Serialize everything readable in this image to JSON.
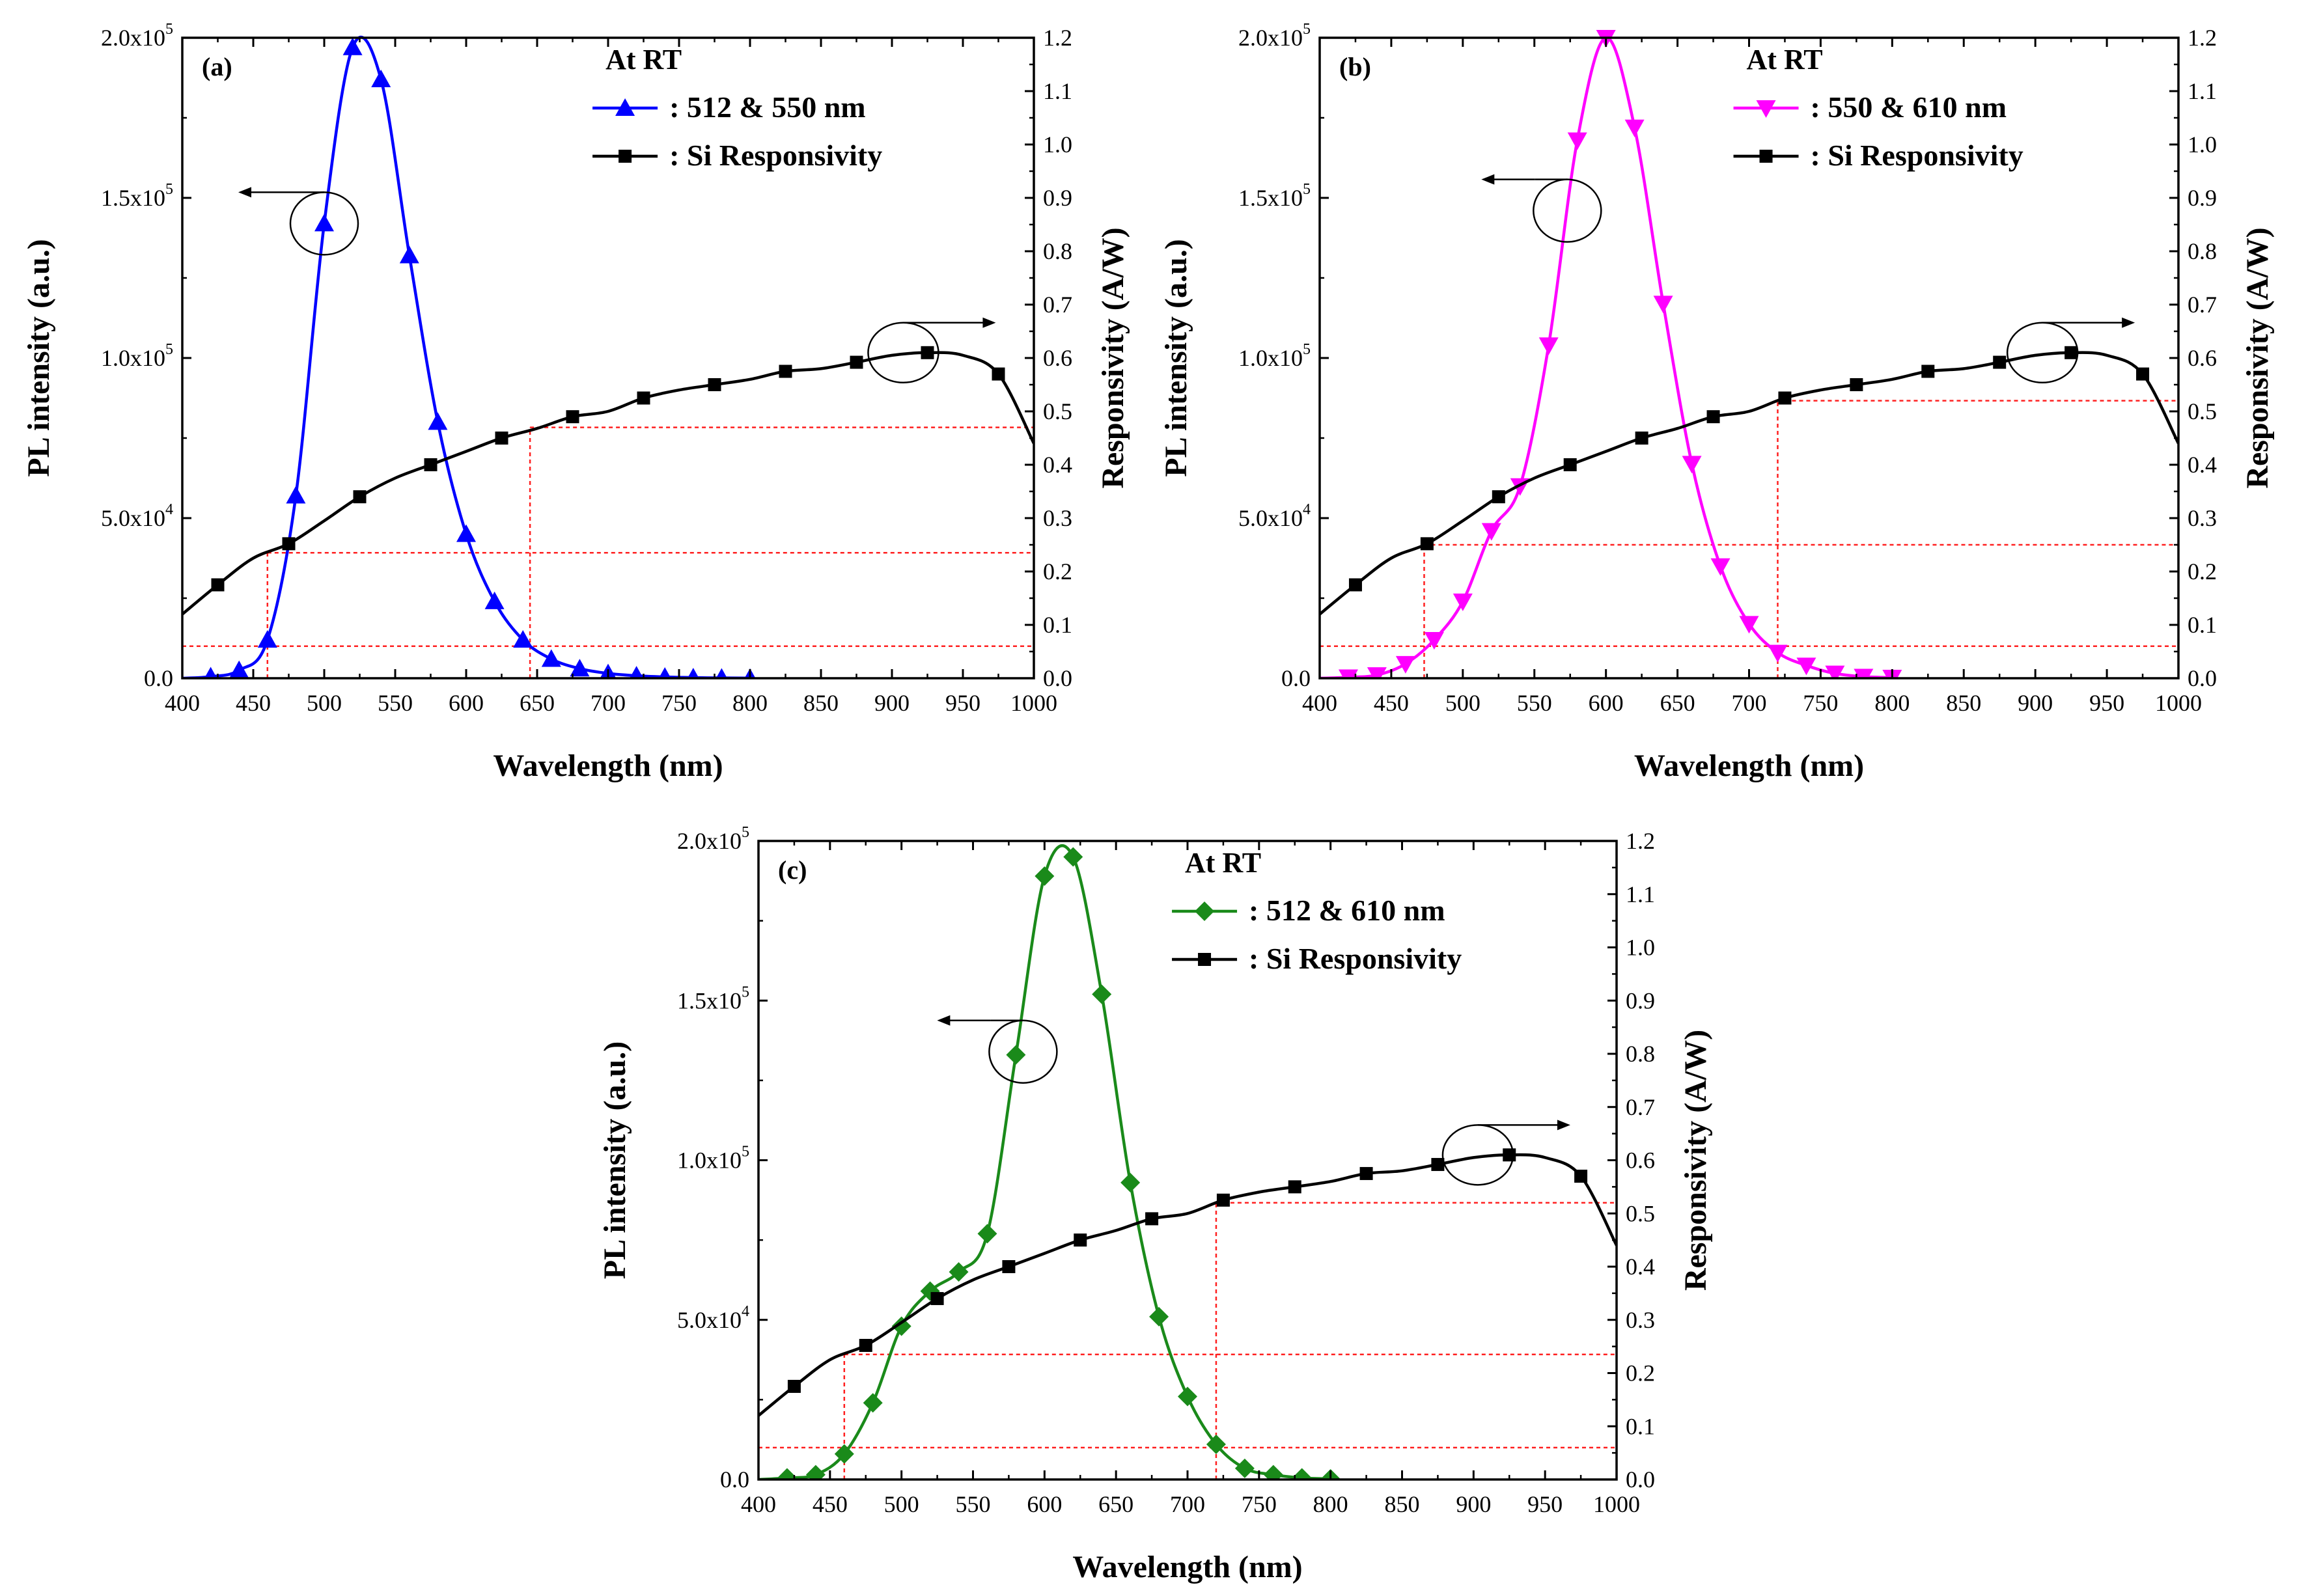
{
  "chart_data": [
    {
      "type": "line",
      "panel_label": "(a)",
      "legend_title": "At RT",
      "xlabel": "Wavelength (nm)",
      "ylabel_left": "PL intensity (a.u.)",
      "ylabel_right": "Responsivity (A/W)",
      "xlim": [
        400,
        1000
      ],
      "ylim_left": [
        0,
        200000
      ],
      "ylim_right": [
        0,
        1.2
      ],
      "x_ticks": [
        "400",
        "450",
        "500",
        "550",
        "600",
        "650",
        "700",
        "750",
        "800",
        "850",
        "900",
        "950",
        "1000"
      ],
      "y_left_ticks": [
        {
          "value": 0,
          "mant": "0.0",
          "exp": ""
        },
        {
          "value": 50000,
          "mant": "5.0x10",
          "exp": "4"
        },
        {
          "value": 100000,
          "mant": "1.0x10",
          "exp": "5"
        },
        {
          "value": 150000,
          "mant": "1.5x10",
          "exp": "5"
        },
        {
          "value": 200000,
          "mant": "2.0x10",
          "exp": "5"
        }
      ],
      "y_right_ticks": [
        "0.0",
        "0.1",
        "0.2",
        "0.3",
        "0.4",
        "0.5",
        "0.6",
        "0.7",
        "0.8",
        "0.9",
        "1.0",
        "1.1",
        "1.2"
      ],
      "series": [
        {
          "name": ": 512 & 550 nm",
          "color": "#0000ff",
          "marker": "triangle-up",
          "axis": "left",
          "x": [
            400,
            420,
            440,
            460,
            480,
            500,
            520,
            540,
            560,
            580,
            600,
            620,
            640,
            660,
            680,
            700,
            720,
            740,
            760,
            780,
            800
          ],
          "y": [
            0,
            500,
            2500,
            12000,
            57000,
            142000,
            197000,
            187000,
            132000,
            80000,
            45000,
            24000,
            12000,
            6000,
            3000,
            1500,
            800,
            400,
            200,
            100,
            50
          ]
        },
        {
          "name": ": Si Responsivity",
          "color": "#000000",
          "marker": "square",
          "axis": "right",
          "x": [
            400,
            425,
            450,
            475,
            500,
            525,
            550,
            575,
            600,
            625,
            650,
            675,
            700,
            725,
            750,
            775,
            800,
            825,
            850,
            875,
            900,
            925,
            950,
            975,
            1000
          ],
          "y": [
            0.12,
            0.175,
            0.225,
            0.252,
            0.295,
            0.34,
            0.375,
            0.4,
            0.425,
            0.45,
            0.468,
            0.49,
            0.5,
            0.525,
            0.54,
            0.55,
            0.56,
            0.575,
            0.58,
            0.592,
            0.605,
            0.61,
            0.605,
            0.57,
            0.44
          ],
          "marker_x": [
            425,
            475,
            525,
            575,
            625,
            675,
            725,
            775,
            825,
            875,
            925,
            975
          ]
        }
      ],
      "guides": {
        "h_left": 10000,
        "h_right_low": 0.235,
        "h_right_high": 0.47,
        "v_low": 460,
        "v_high": 645
      },
      "arrows": {
        "left_circle": [
          500,
          142000
        ],
        "right_circle": [
          908,
          0.61
        ]
      }
    },
    {
      "type": "line",
      "panel_label": "(b)",
      "legend_title": "At RT",
      "xlabel": "Wavelength (nm)",
      "ylabel_left": "PL intensity (a.u.)",
      "ylabel_right": "Responsivity (A/W)",
      "xlim": [
        400,
        1000
      ],
      "ylim_left": [
        0,
        200000
      ],
      "ylim_right": [
        0,
        1.2
      ],
      "x_ticks": [
        "400",
        "450",
        "500",
        "550",
        "600",
        "650",
        "700",
        "750",
        "800",
        "850",
        "900",
        "950",
        "1000"
      ],
      "y_left_ticks": [
        {
          "value": 0,
          "mant": "0.0",
          "exp": ""
        },
        {
          "value": 50000,
          "mant": "5.0x10",
          "exp": "4"
        },
        {
          "value": 100000,
          "mant": "1.0x10",
          "exp": "5"
        },
        {
          "value": 150000,
          "mant": "1.5x10",
          "exp": "5"
        },
        {
          "value": 200000,
          "mant": "2.0x10",
          "exp": "5"
        }
      ],
      "y_right_ticks": [
        "0.0",
        "0.1",
        "0.2",
        "0.3",
        "0.4",
        "0.5",
        "0.6",
        "0.7",
        "0.8",
        "0.9",
        "1.0",
        "1.1",
        "1.2"
      ],
      "series": [
        {
          "name": ": 550 & 610 nm",
          "color": "#ff00ff",
          "marker": "triangle-down",
          "axis": "left",
          "x": [
            400,
            420,
            440,
            460,
            480,
            500,
            520,
            540,
            560,
            580,
            600,
            620,
            640,
            660,
            680,
            700,
            720,
            740,
            760,
            780,
            800
          ],
          "y": [
            0,
            300,
            1000,
            4500,
            12000,
            24000,
            46000,
            60000,
            104000,
            168000,
            200000,
            172000,
            117000,
            67000,
            35000,
            17000,
            8000,
            4000,
            1500,
            500,
            200
          ]
        },
        {
          "name": ": Si Responsivity",
          "color": "#000000",
          "marker": "square",
          "axis": "right",
          "x": [
            400,
            425,
            450,
            475,
            500,
            525,
            550,
            575,
            600,
            625,
            650,
            675,
            700,
            725,
            750,
            775,
            800,
            825,
            850,
            875,
            900,
            925,
            950,
            975,
            1000
          ],
          "y": [
            0.12,
            0.175,
            0.225,
            0.252,
            0.295,
            0.34,
            0.375,
            0.4,
            0.425,
            0.45,
            0.468,
            0.49,
            0.5,
            0.525,
            0.54,
            0.55,
            0.56,
            0.575,
            0.58,
            0.592,
            0.605,
            0.61,
            0.605,
            0.57,
            0.44
          ],
          "marker_x": [
            425,
            475,
            525,
            575,
            625,
            675,
            725,
            775,
            825,
            875,
            925,
            975
          ]
        }
      ],
      "guides": {
        "h_left": 10000,
        "h_right_low": 0.25,
        "h_right_high": 0.52,
        "v_low": 473,
        "v_high": 720
      },
      "arrows": {
        "left_circle": [
          573,
          146000
        ],
        "right_circle": [
          905,
          0.61
        ]
      }
    },
    {
      "type": "line",
      "panel_label": "(c)",
      "legend_title": "At RT",
      "xlabel": "Wavelength (nm)",
      "ylabel_left": "PL intensity (a.u.)",
      "ylabel_right": "Responsivity (A/W)",
      "xlim": [
        400,
        1000
      ],
      "ylim_left": [
        0,
        200000
      ],
      "ylim_right": [
        0,
        1.2
      ],
      "x_ticks": [
        "400",
        "450",
        "500",
        "550",
        "600",
        "650",
        "700",
        "750",
        "800",
        "850",
        "900",
        "950",
        "1000"
      ],
      "y_left_ticks": [
        {
          "value": 0,
          "mant": "0.0",
          "exp": ""
        },
        {
          "value": 50000,
          "mant": "5.0x10",
          "exp": "4"
        },
        {
          "value": 100000,
          "mant": "1.0x10",
          "exp": "5"
        },
        {
          "value": 150000,
          "mant": "1.5x10",
          "exp": "5"
        },
        {
          "value": 200000,
          "mant": "2.0x10",
          "exp": "5"
        }
      ],
      "y_right_ticks": [
        "0.0",
        "0.1",
        "0.2",
        "0.3",
        "0.4",
        "0.5",
        "0.6",
        "0.7",
        "0.8",
        "0.9",
        "1.0",
        "1.1",
        "1.2"
      ],
      "series": [
        {
          "name": ": 512 & 610 nm",
          "color": "#1a8a1a",
          "marker": "diamond",
          "axis": "left",
          "x": [
            400,
            420,
            440,
            460,
            480,
            500,
            520,
            540,
            560,
            580,
            600,
            620,
            640,
            660,
            680,
            700,
            720,
            740,
            760,
            780,
            800
          ],
          "y": [
            0,
            500,
            1500,
            8000,
            24000,
            48000,
            59000,
            65000,
            77000,
            133000,
            189000,
            195000,
            152000,
            93000,
            51000,
            26000,
            11000,
            3500,
            1500,
            500,
            200
          ]
        },
        {
          "name": ": Si Responsivity",
          "color": "#000000",
          "marker": "square",
          "axis": "right",
          "x": [
            400,
            425,
            450,
            475,
            500,
            525,
            550,
            575,
            600,
            625,
            650,
            675,
            700,
            725,
            750,
            775,
            800,
            825,
            850,
            875,
            900,
            925,
            950,
            975,
            1000
          ],
          "y": [
            0.12,
            0.175,
            0.225,
            0.252,
            0.295,
            0.34,
            0.375,
            0.4,
            0.425,
            0.45,
            0.468,
            0.49,
            0.5,
            0.525,
            0.54,
            0.55,
            0.56,
            0.575,
            0.58,
            0.592,
            0.605,
            0.61,
            0.605,
            0.57,
            0.44
          ],
          "marker_x": [
            425,
            475,
            525,
            575,
            625,
            675,
            725,
            775,
            825,
            875,
            925,
            975
          ]
        }
      ],
      "guides": {
        "h_left": 10000,
        "h_right_low": 0.235,
        "h_right_high": 0.52,
        "v_low": 460,
        "v_high": 720
      },
      "arrows": {
        "left_circle": [
          585,
          134000
        ],
        "right_circle": [
          903,
          0.61
        ]
      }
    }
  ]
}
